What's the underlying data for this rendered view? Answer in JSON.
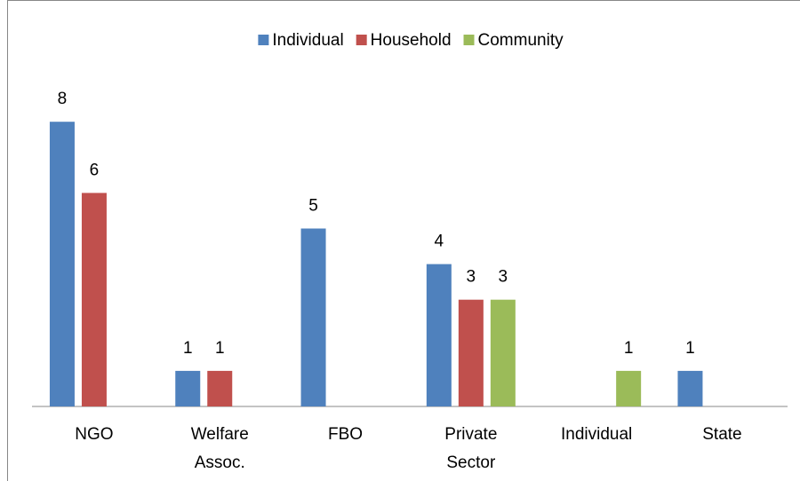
{
  "chart_data": {
    "type": "bar",
    "categories": [
      "NGO",
      "Welfare Assoc.",
      "FBO",
      "Private Sector",
      "Individual",
      "State"
    ],
    "series": [
      {
        "name": "Individual",
        "color": "#4f81bd",
        "values": [
          8,
          1,
          5,
          4,
          null,
          1
        ]
      },
      {
        "name": "Household",
        "color": "#c0504d",
        "values": [
          6,
          1,
          null,
          3,
          null,
          null
        ]
      },
      {
        "name": "Community",
        "color": "#9bbb59",
        "values": [
          null,
          null,
          null,
          3,
          1,
          null
        ]
      }
    ],
    "legend": "top"
  }
}
